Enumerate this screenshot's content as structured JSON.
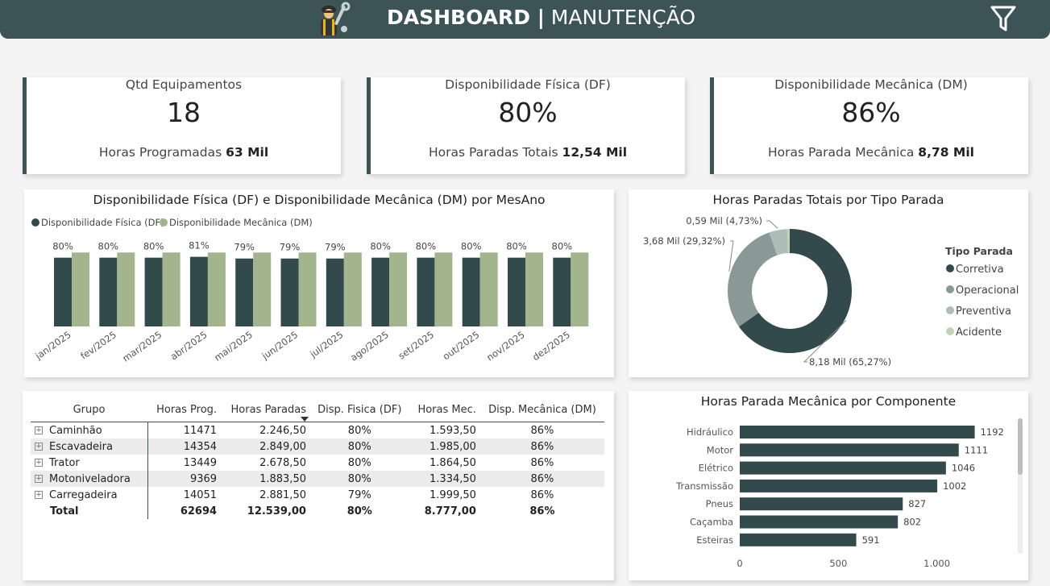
{
  "header": {
    "title_bold": "DASHBOARD |",
    "title_rest": " MANUTENÇÃO",
    "icon": "mechanic-icon",
    "filter_icon": "filter-icon"
  },
  "kpis": [
    {
      "label": "Qtd Equipamentos",
      "value": "18",
      "sub_label": "Horas Programadas ",
      "sub_value": "63 Mil"
    },
    {
      "label": "Disponibilidade Física (DF)",
      "value": "80%",
      "sub_label": "Horas Paradas Totais ",
      "sub_value": "12,54 Mil"
    },
    {
      "label": "Disponibilidade Mecânica (DM)",
      "value": "86%",
      "sub_label": "Horas Parada Mecânica ",
      "sub_value": "8,78 Mil"
    }
  ],
  "colors": {
    "header": "#3c5456",
    "df": "#334a4c",
    "dm": "#a3b58c",
    "corretiva": "#334a4c",
    "operacional": "#8a9896",
    "preventiva": "#adbdb7",
    "acidente": "#c4d2b4"
  },
  "chart_data": [
    {
      "type": "bar",
      "title": "Disponibilidade Física (DF) e Disponibilidade Mecânica (DM) por MesAno",
      "categories": [
        "jan/2025",
        "fev/2025",
        "mar/2025",
        "abr/2025",
        "mai/2025",
        "jun/2025",
        "jul/2025",
        "ago/2025",
        "set/2025",
        "out/2025",
        "nov/2025",
        "dez/2025"
      ],
      "series": [
        {
          "name": "Disponibilidade Física (DF)",
          "values": [
            80,
            80,
            80,
            81,
            79,
            79,
            79,
            80,
            80,
            80,
            80,
            80
          ],
          "labels": [
            "80%",
            "80%",
            "80%",
            "81%",
            "79%",
            "79%",
            "79%",
            "80%",
            "80%",
            "80%",
            "80%",
            "80%"
          ]
        },
        {
          "name": "Disponibilidade Mecânica (DM)",
          "values": [
            86,
            86,
            86,
            86,
            86,
            86,
            86,
            86,
            86,
            86,
            86,
            86
          ]
        }
      ],
      "ylim": [
        0,
        90
      ],
      "legend": "top-left"
    },
    {
      "type": "pie",
      "title": "Horas Paradas Totais por Tipo Parada",
      "legend_title": "Tipo Parada",
      "slices": [
        {
          "name": "Corretiva",
          "value": 8.18,
          "label": "8,18 Mil (65,27%)"
        },
        {
          "name": "Operacional",
          "value": 3.68,
          "label": "3,68 Mil (29,32%)"
        },
        {
          "name": "Preventiva",
          "value": 0.59,
          "label": "0,59 Mil (4,73%)"
        },
        {
          "name": "Acidente",
          "value": 0.084,
          "label": ""
        }
      ],
      "legend": "right"
    },
    {
      "type": "bar",
      "orientation": "horizontal",
      "title": "Horas Parada Mecânica por Componente",
      "categories": [
        "Hidráulico",
        "Motor",
        "Elétrico",
        "Transmissão",
        "Pneus",
        "Caçamba",
        "Esteiras"
      ],
      "values": [
        1192,
        1111,
        1046,
        1002,
        827,
        802,
        591
      ],
      "xlim": [
        0,
        1300
      ],
      "ticks": [
        {
          "v": 0,
          "label": "0"
        },
        {
          "v": 500,
          "label": "500"
        },
        {
          "v": 1000,
          "label": "1.000"
        }
      ]
    }
  ],
  "table": {
    "headers": [
      "Grupo",
      "Horas Prog.",
      "Horas Paradas",
      "Disp. Fisica (DF)",
      "Horas Mec.",
      "Disp. Mecânica (DM)"
    ],
    "rows": [
      [
        "Caminhão",
        "11471",
        "2.246,50",
        "80%",
        "1.593,50",
        "86%"
      ],
      [
        "Escavadeira",
        "14354",
        "2.849,00",
        "80%",
        "1.985,00",
        "86%"
      ],
      [
        "Trator",
        "13449",
        "2.678,50",
        "80%",
        "1.864,50",
        "86%"
      ],
      [
        "Motoniveladora",
        "9369",
        "1.883,50",
        "80%",
        "1.334,50",
        "86%"
      ],
      [
        "Carregadeira",
        "14051",
        "2.881,50",
        "79%",
        "1.999,50",
        "86%"
      ]
    ],
    "total": [
      "Total",
      "62694",
      "12.539,00",
      "80%",
      "8.777,00",
      "86%"
    ],
    "expand_glyph": "+"
  }
}
